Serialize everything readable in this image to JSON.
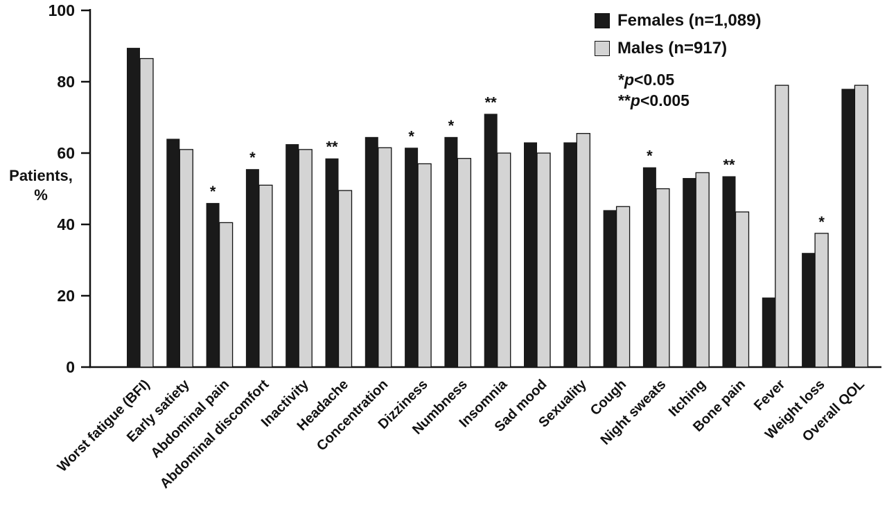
{
  "figure": {
    "legend": [
      {
        "label": "Females (n=1,089)",
        "swatch": "#1a1a1a"
      },
      {
        "label": "Males (n=917)",
        "swatch": "#d4d4d4"
      }
    ],
    "notes": [
      {
        "star": "*",
        "p": "p",
        "rest": "<0.05"
      },
      {
        "star": "**",
        "p": "p",
        "rest": "<0.005"
      }
    ]
  },
  "chart_data": {
    "type": "bar",
    "title": "",
    "xlabel": "",
    "ylabel": "Patients, %",
    "ylabel_lines": [
      "Patients,",
      "%"
    ],
    "ylim": [
      0,
      100
    ],
    "yticks": [
      0,
      20,
      40,
      60,
      80,
      100
    ],
    "grid": false,
    "legend_position": "top-right",
    "categories": [
      "Worst fatigue (BFI)",
      "Early satiety",
      "Abdominal pain",
      "Abdominal discomfort",
      "Inactivity",
      "Headache",
      "Concentration",
      "Dizziness",
      "Numbness",
      "Insomnia",
      "Sad mood",
      "Sexuality",
      "Cough",
      "Night sweats",
      "Itching",
      "Bone pain",
      "Fever",
      "Weight loss",
      "Overall QOL"
    ],
    "series": [
      {
        "name": "Females (n=1,089)",
        "color": "#1a1a1a",
        "values": [
          89.5,
          64,
          46,
          55.5,
          62.5,
          58.5,
          64.5,
          61.5,
          64.5,
          71,
          63,
          63,
          44,
          56,
          53,
          53.5,
          19.5,
          32,
          78
        ]
      },
      {
        "name": "Males (n=917)",
        "color": "#d4d4d4",
        "values": [
          86.5,
          61,
          40.5,
          51,
          61,
          49.5,
          61.5,
          57,
          58.5,
          60,
          60,
          65.5,
          45,
          50,
          54.5,
          43.5,
          79,
          37.5,
          79
        ]
      }
    ],
    "significance": [
      "",
      "",
      "*",
      "*",
      "",
      "**",
      "",
      "*",
      "*",
      "**",
      "",
      "",
      "",
      "*",
      "",
      "**",
      "",
      "*",
      ""
    ]
  }
}
